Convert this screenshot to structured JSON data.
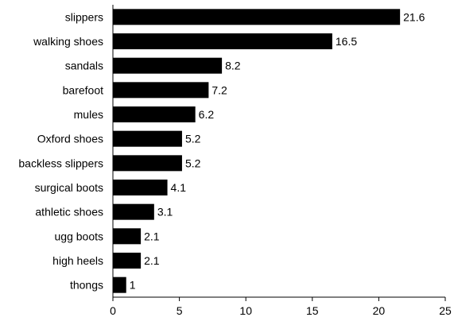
{
  "chart_data": {
    "type": "bar",
    "orientation": "horizontal",
    "categories": [
      "slippers",
      "walking shoes",
      "sandals",
      "barefoot",
      "mules",
      "Oxford shoes",
      "backless slippers",
      "surgical boots",
      "athletic shoes",
      "ugg boots",
      "high heels",
      "thongs"
    ],
    "values": [
      21.6,
      16.5,
      8.2,
      7.2,
      6.2,
      5.2,
      5.2,
      4.1,
      3.1,
      2.1,
      2.1,
      1
    ],
    "value_labels": [
      "21.6",
      "16.5",
      "8.2",
      "7.2",
      "6.2",
      "5.2",
      "5.2",
      "4.1",
      "3.1",
      "2.1",
      "2.1",
      "1"
    ],
    "xlim": [
      0,
      25
    ],
    "xticks": [
      "0",
      "5",
      "10",
      "15",
      "20",
      "25"
    ],
    "title": "",
    "xlabel": "",
    "ylabel": "",
    "grid": false,
    "legend": "none",
    "bar_color": "#000000"
  }
}
